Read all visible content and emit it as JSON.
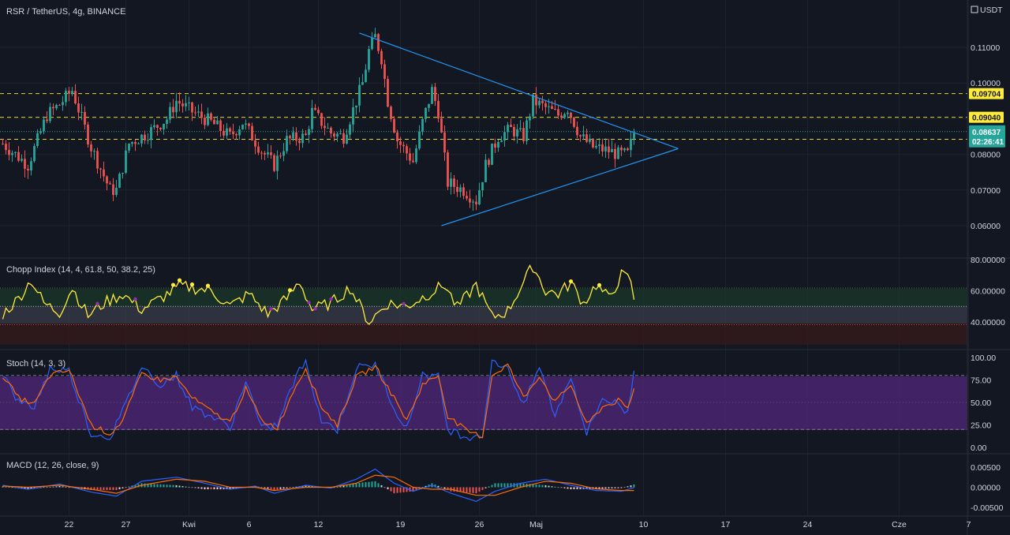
{
  "header": {
    "symbol": "RSR / TetherUS, 4g, BINANCE",
    "currency": "USDT"
  },
  "colors": {
    "background": "#131722",
    "grid": "#1e222d",
    "up": "#26a69a",
    "down": "#ef5350",
    "trendline": "#2196f3",
    "level": "#ffeb3b",
    "price_tag": "#26a69a",
    "chop": "#ffeb3b",
    "stoch_k": "#2962ff",
    "stoch_d": "#ff6d00",
    "macd": "#2962ff",
    "signal": "#ff6d00"
  },
  "price_axis": {
    "ticks": [
      "0.11000",
      "0.10000",
      "0.09000",
      "0.08000",
      "0.07000",
      "0.06000"
    ],
    "levels": [
      {
        "label": "0.09704",
        "value": 0.09704
      },
      {
        "label": "0.09040",
        "value": 0.0904
      },
      {
        "label": "0.08422",
        "value": 0.08422
      }
    ],
    "last_price": {
      "label": "0.08637",
      "value": 0.08637,
      "countdown": "02:26:41"
    }
  },
  "time_axis": {
    "ticks": [
      {
        "label": "22",
        "slot": 21
      },
      {
        "label": "27",
        "slot": 39
      },
      {
        "label": "Kwi",
        "slot": 59
      },
      {
        "label": "6",
        "slot": 78
      },
      {
        "label": "12",
        "slot": 100
      },
      {
        "label": "19",
        "slot": 126
      },
      {
        "label": "26",
        "slot": 151
      },
      {
        "label": "Maj",
        "slot": 169
      },
      {
        "label": "10",
        "slot": 203
      },
      {
        "label": "17",
        "slot": 229
      },
      {
        "label": "24",
        "slot": 255
      },
      {
        "label": "Cze",
        "slot": 284
      },
      {
        "label": "7",
        "slot": 306
      }
    ]
  },
  "indicators": {
    "chop": {
      "title": "Chopp Index (14, 4, 61.8, 50, 38.2, 25)",
      "ticks": [
        "80.00000",
        "60.00000",
        "40.00000"
      ]
    },
    "stoch": {
      "title": "Stoch (14, 3, 3)",
      "ticks": [
        "100.00",
        "75.00",
        "50.00",
        "25.00",
        "0.00"
      ]
    },
    "macd": {
      "title": "MACD (12, 26, close, 9)",
      "ticks": [
        "0.00500",
        "0.00000",
        "-0.00500"
      ]
    }
  },
  "chart_data": {
    "type": "candlestick",
    "interval": "4g",
    "price_ylim": [
      0.05,
      0.118
    ],
    "key_points": [
      {
        "slot": 0,
        "close": 0.083
      },
      {
        "slot": 8,
        "close": 0.077
      },
      {
        "slot": 14,
        "close": 0.091
      },
      {
        "slot": 18,
        "close": 0.094
      },
      {
        "slot": 22,
        "close": 0.098
      },
      {
        "slot": 28,
        "close": 0.082
      },
      {
        "slot": 34,
        "close": 0.07
      },
      {
        "slot": 36,
        "close": 0.07
      },
      {
        "slot": 40,
        "close": 0.083
      },
      {
        "slot": 46,
        "close": 0.086
      },
      {
        "slot": 52,
        "close": 0.09
      },
      {
        "slot": 55,
        "close": 0.095
      },
      {
        "slot": 60,
        "close": 0.092
      },
      {
        "slot": 66,
        "close": 0.089
      },
      {
        "slot": 72,
        "close": 0.085
      },
      {
        "slot": 76,
        "close": 0.089
      },
      {
        "slot": 82,
        "close": 0.081
      },
      {
        "slot": 86,
        "close": 0.077
      },
      {
        "slot": 90,
        "close": 0.084
      },
      {
        "slot": 96,
        "close": 0.085
      },
      {
        "slot": 98,
        "close": 0.092
      },
      {
        "slot": 104,
        "close": 0.086
      },
      {
        "slot": 108,
        "close": 0.085
      },
      {
        "slot": 112,
        "close": 0.095
      },
      {
        "slot": 114,
        "close": 0.1
      },
      {
        "slot": 116,
        "close": 0.109
      },
      {
        "slot": 118,
        "close": 0.113
      },
      {
        "slot": 120,
        "close": 0.107
      },
      {
        "slot": 122,
        "close": 0.095
      },
      {
        "slot": 125,
        "close": 0.084
      },
      {
        "slot": 130,
        "close": 0.078
      },
      {
        "slot": 133,
        "close": 0.089
      },
      {
        "slot": 136,
        "close": 0.098
      },
      {
        "slot": 138,
        "close": 0.092
      },
      {
        "slot": 141,
        "close": 0.072
      },
      {
        "slot": 146,
        "close": 0.07
      },
      {
        "slot": 150,
        "close": 0.067
      },
      {
        "slot": 153,
        "close": 0.077
      },
      {
        "slot": 157,
        "close": 0.085
      },
      {
        "slot": 161,
        "close": 0.087
      },
      {
        "slot": 165,
        "close": 0.085
      },
      {
        "slot": 168,
        "close": 0.095
      },
      {
        "slot": 172,
        "close": 0.093
      },
      {
        "slot": 176,
        "close": 0.091
      },
      {
        "slot": 179,
        "close": 0.093
      },
      {
        "slot": 183,
        "close": 0.085
      },
      {
        "slot": 187,
        "close": 0.082
      },
      {
        "slot": 192,
        "close": 0.081
      },
      {
        "slot": 195,
        "close": 0.08
      },
      {
        "slot": 198,
        "close": 0.08
      },
      {
        "slot": 200,
        "close": 0.086
      }
    ],
    "trendlines": [
      {
        "from": {
          "slot": 113,
          "price": 0.114
        },
        "to": {
          "slot": 214,
          "price": 0.0816
        }
      },
      {
        "from": {
          "slot": 139,
          "price": 0.06
        },
        "to": {
          "slot": 214,
          "price": 0.0816
        }
      }
    ],
    "chop_ylim": [
      33,
      83
    ],
    "chop_key_points": [
      {
        "slot": 0,
        "v": 45
      },
      {
        "slot": 5,
        "v": 55
      },
      {
        "slot": 9,
        "v": 67
      },
      {
        "slot": 13,
        "v": 52
      },
      {
        "slot": 18,
        "v": 46
      },
      {
        "slot": 22,
        "v": 62
      },
      {
        "slot": 27,
        "v": 44
      },
      {
        "slot": 32,
        "v": 52
      },
      {
        "slot": 38,
        "v": 58
      },
      {
        "slot": 44,
        "v": 48
      },
      {
        "slot": 50,
        "v": 55
      },
      {
        "slot": 56,
        "v": 63
      },
      {
        "slot": 60,
        "v": 62
      },
      {
        "slot": 66,
        "v": 60
      },
      {
        "slot": 72,
        "v": 50
      },
      {
        "slot": 78,
        "v": 58
      },
      {
        "slot": 84,
        "v": 45
      },
      {
        "slot": 90,
        "v": 55
      },
      {
        "slot": 94,
        "v": 66
      },
      {
        "slot": 98,
        "v": 48
      },
      {
        "slot": 104,
        "v": 52
      },
      {
        "slot": 110,
        "v": 62
      },
      {
        "slot": 116,
        "v": 40
      },
      {
        "slot": 122,
        "v": 52
      },
      {
        "slot": 128,
        "v": 50
      },
      {
        "slot": 134,
        "v": 57
      },
      {
        "slot": 140,
        "v": 64
      },
      {
        "slot": 144,
        "v": 49
      },
      {
        "slot": 150,
        "v": 64
      },
      {
        "slot": 155,
        "v": 43
      },
      {
        "slot": 160,
        "v": 47
      },
      {
        "slot": 164,
        "v": 62
      },
      {
        "slot": 168,
        "v": 76
      },
      {
        "slot": 172,
        "v": 60
      },
      {
        "slot": 176,
        "v": 58
      },
      {
        "slot": 180,
        "v": 65
      },
      {
        "slot": 184,
        "v": 52
      },
      {
        "slot": 188,
        "v": 64
      },
      {
        "slot": 192,
        "v": 55
      },
      {
        "slot": 196,
        "v": 70
      },
      {
        "slot": 199,
        "v": 67
      },
      {
        "slot": 200,
        "v": 52
      }
    ],
    "stoch_ylim": [
      0,
      100
    ],
    "stoch_key_points": [
      {
        "slot": 0,
        "k": 82,
        "d": 80
      },
      {
        "slot": 5,
        "k": 50,
        "d": 55
      },
      {
        "slot": 10,
        "k": 45,
        "d": 48
      },
      {
        "slot": 15,
        "k": 88,
        "d": 80
      },
      {
        "slot": 21,
        "k": 85,
        "d": 86
      },
      {
        "slot": 28,
        "k": 15,
        "d": 25
      },
      {
        "slot": 34,
        "k": 12,
        "d": 15
      },
      {
        "slot": 38,
        "k": 40,
        "d": 30
      },
      {
        "slot": 44,
        "k": 90,
        "d": 82
      },
      {
        "slot": 50,
        "k": 70,
        "d": 75
      },
      {
        "slot": 55,
        "k": 80,
        "d": 78
      },
      {
        "slot": 60,
        "k": 45,
        "d": 55
      },
      {
        "slot": 66,
        "k": 35,
        "d": 40
      },
      {
        "slot": 72,
        "k": 22,
        "d": 28
      },
      {
        "slot": 77,
        "k": 75,
        "d": 65
      },
      {
        "slot": 82,
        "k": 20,
        "d": 30
      },
      {
        "slot": 87,
        "k": 25,
        "d": 22
      },
      {
        "slot": 93,
        "k": 80,
        "d": 70
      },
      {
        "slot": 96,
        "k": 95,
        "d": 88
      },
      {
        "slot": 101,
        "k": 30,
        "d": 45
      },
      {
        "slot": 106,
        "k": 20,
        "d": 25
      },
      {
        "slot": 112,
        "k": 88,
        "d": 78
      },
      {
        "slot": 118,
        "k": 92,
        "d": 90
      },
      {
        "slot": 124,
        "k": 45,
        "d": 55
      },
      {
        "slot": 128,
        "k": 20,
        "d": 30
      },
      {
        "slot": 133,
        "k": 82,
        "d": 70
      },
      {
        "slot": 138,
        "k": 78,
        "d": 80
      },
      {
        "slot": 141,
        "k": 20,
        "d": 35
      },
      {
        "slot": 147,
        "k": 12,
        "d": 18
      },
      {
        "slot": 152,
        "k": 15,
        "d": 12
      },
      {
        "slot": 155,
        "k": 95,
        "d": 80
      },
      {
        "slot": 160,
        "k": 90,
        "d": 92
      },
      {
        "slot": 165,
        "k": 45,
        "d": 55
      },
      {
        "slot": 170,
        "k": 90,
        "d": 80
      },
      {
        "slot": 175,
        "k": 35,
        "d": 50
      },
      {
        "slot": 180,
        "k": 80,
        "d": 70
      },
      {
        "slot": 185,
        "k": 15,
        "d": 25
      },
      {
        "slot": 190,
        "k": 55,
        "d": 45
      },
      {
        "slot": 195,
        "k": 48,
        "d": 52
      },
      {
        "slot": 198,
        "k": 38,
        "d": 42
      },
      {
        "slot": 200,
        "k": 85,
        "d": 65
      }
    ],
    "macd_ylim": [
      -0.0075,
      0.007
    ],
    "macd_key_points": [
      {
        "slot": 0,
        "m": 0.0005,
        "s": 0.0003
      },
      {
        "slot": 8,
        "m": -0.0005,
        "s": 0.0
      },
      {
        "slot": 18,
        "m": 0.0008,
        "s": 0.0005
      },
      {
        "slot": 28,
        "m": -0.0012,
        "s": -0.0005
      },
      {
        "slot": 36,
        "m": -0.0022,
        "s": -0.0015
      },
      {
        "slot": 44,
        "m": 0.0015,
        "s": 0.0005
      },
      {
        "slot": 55,
        "m": 0.0025,
        "s": 0.002
      },
      {
        "slot": 64,
        "m": 0.001,
        "s": 0.0015
      },
      {
        "slot": 72,
        "m": -0.0005,
        "s": 0.0
      },
      {
        "slot": 80,
        "m": 0.0003,
        "s": 0.0
      },
      {
        "slot": 86,
        "m": -0.0015,
        "s": -0.0008
      },
      {
        "slot": 96,
        "m": 0.0005,
        "s": 0.0
      },
      {
        "slot": 104,
        "m": -0.0002,
        "s": 0.0
      },
      {
        "slot": 112,
        "m": 0.002,
        "s": 0.001
      },
      {
        "slot": 118,
        "m": 0.0045,
        "s": 0.003
      },
      {
        "slot": 124,
        "m": 0.001,
        "s": 0.0025
      },
      {
        "slot": 130,
        "m": -0.001,
        "s": 0.0
      },
      {
        "slot": 136,
        "m": 0.0005,
        "s": -0.0005
      },
      {
        "slot": 142,
        "m": -0.0015,
        "s": -0.0005
      },
      {
        "slot": 150,
        "m": -0.0035,
        "s": -0.002
      },
      {
        "slot": 156,
        "m": -0.001,
        "s": -0.002
      },
      {
        "slot": 164,
        "m": 0.001,
        "s": 0.0
      },
      {
        "slot": 172,
        "m": 0.002,
        "s": 0.0015
      },
      {
        "slot": 180,
        "m": 0.0005,
        "s": 0.001
      },
      {
        "slot": 188,
        "m": -0.0008,
        "s": -0.0004
      },
      {
        "slot": 196,
        "m": -0.001,
        "s": -0.0008
      },
      {
        "slot": 200,
        "m": -0.0001,
        "s": -0.0008
      }
    ]
  }
}
